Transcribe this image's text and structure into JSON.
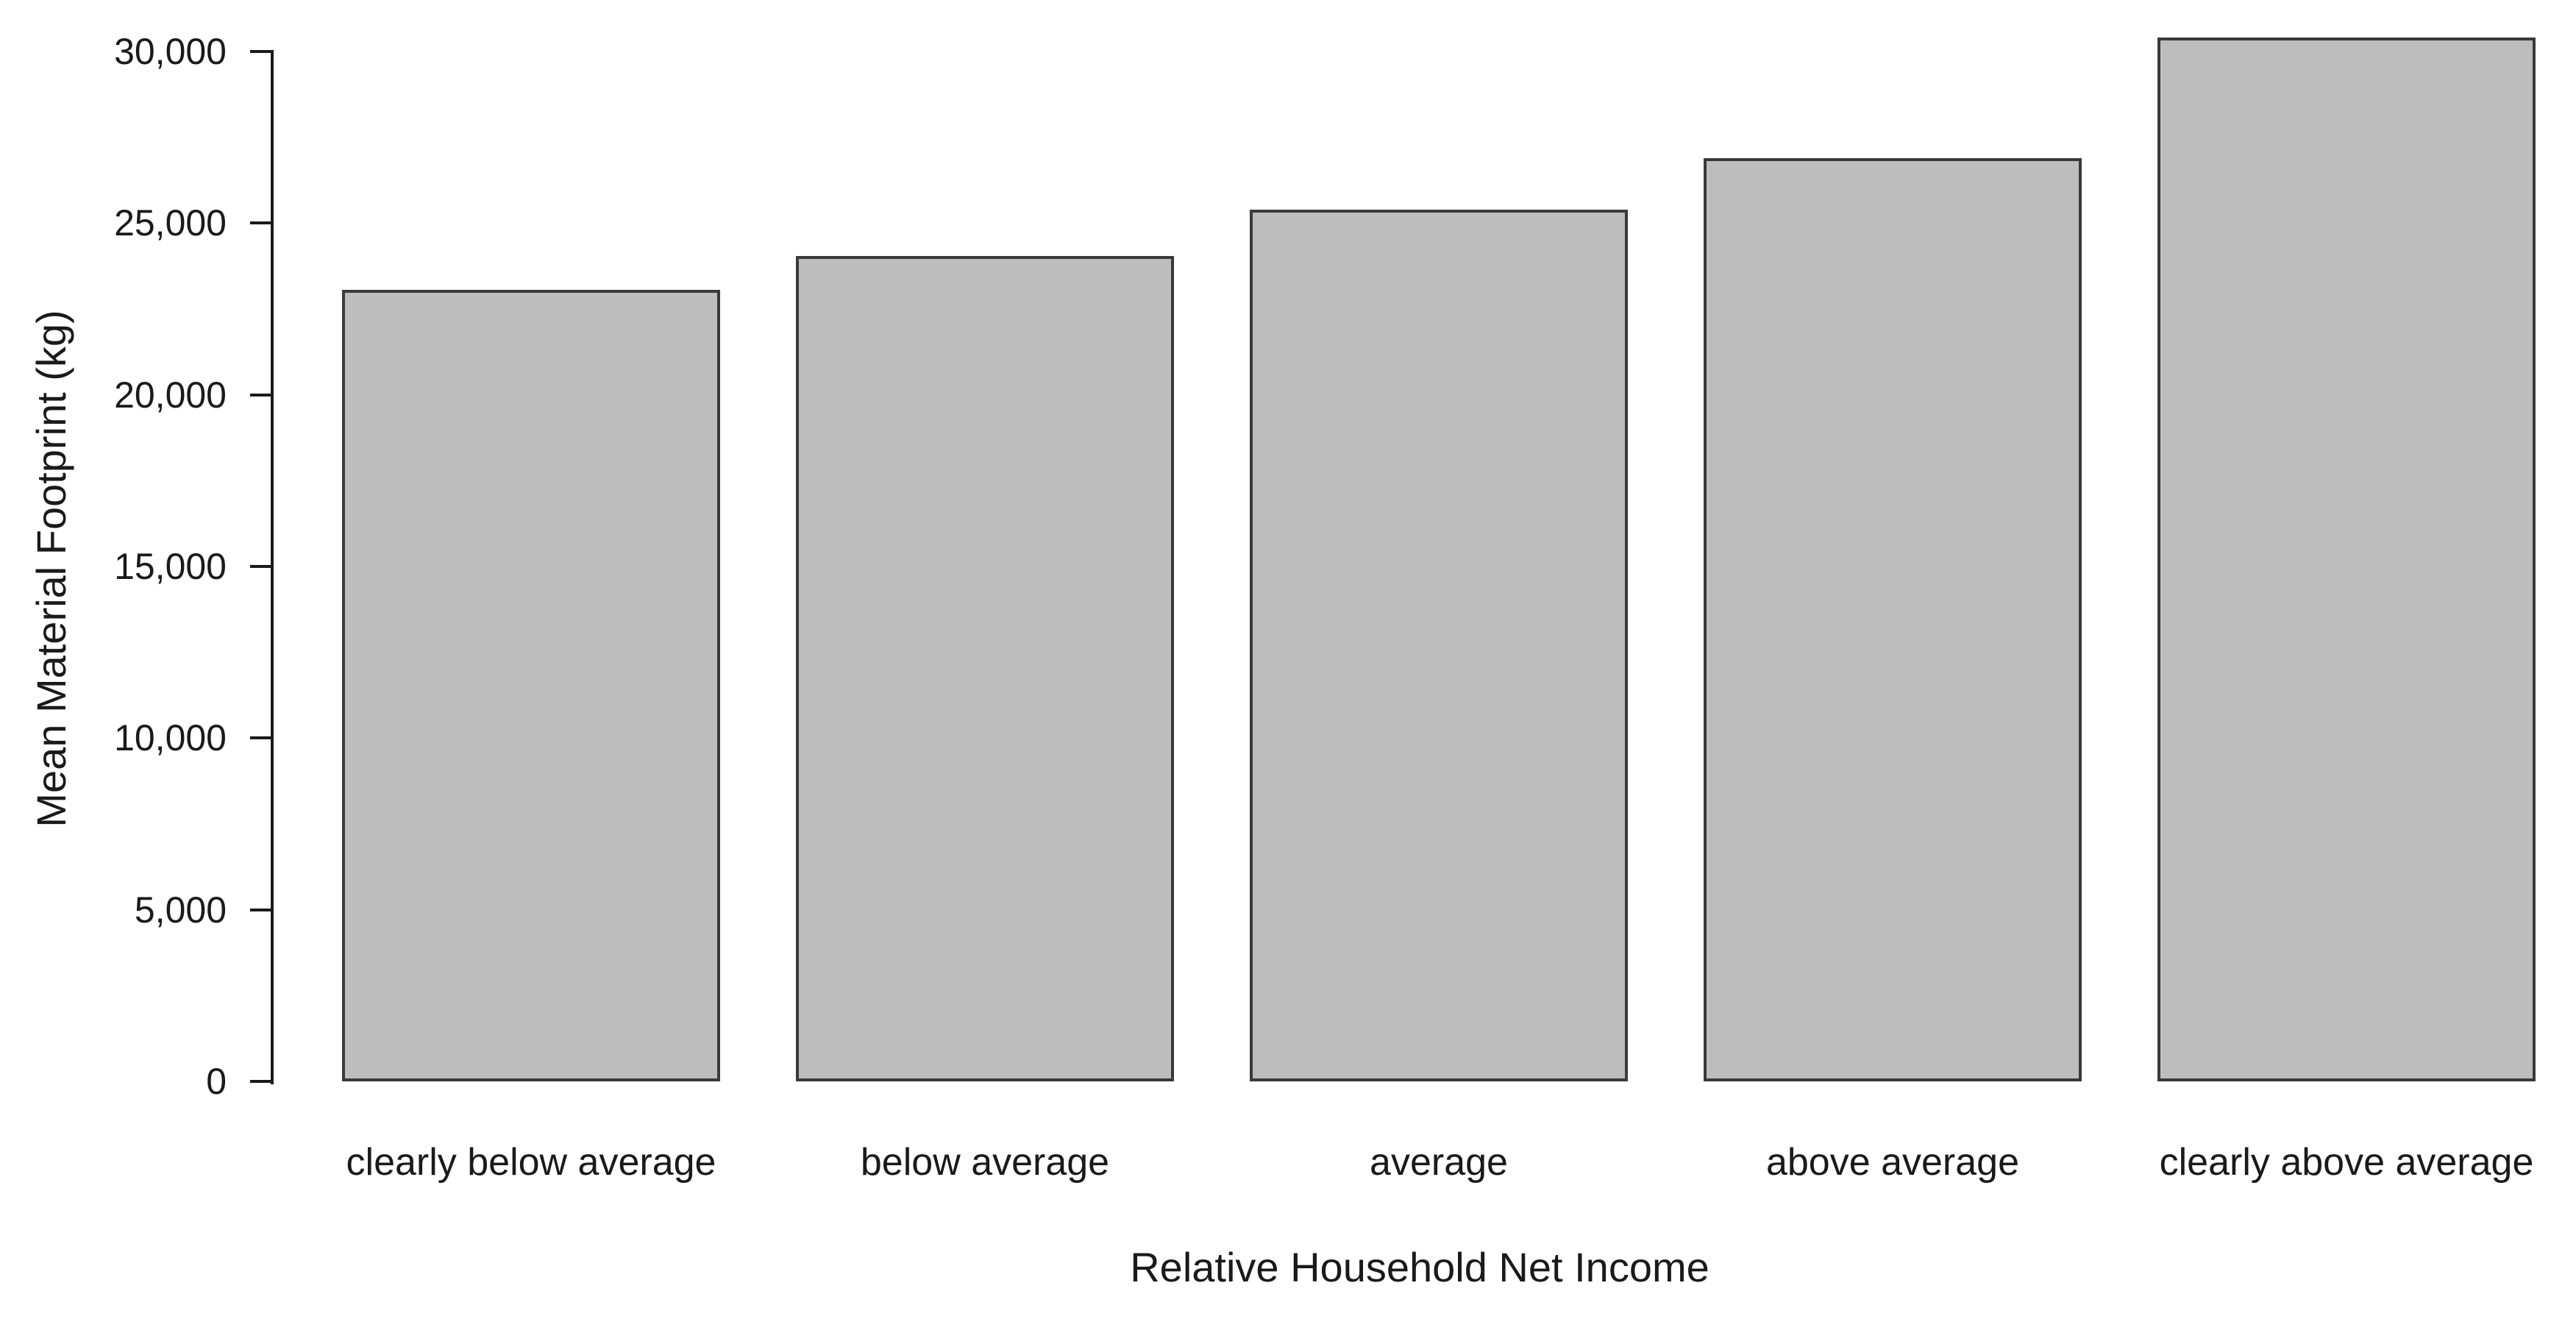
{
  "chart_data": {
    "type": "bar",
    "title": "",
    "categories": [
      "clearly below average",
      "below average",
      "average",
      "above average",
      "clearly above average"
    ],
    "values": [
      23050,
      24050,
      25400,
      26900,
      30400
    ],
    "xlabel": "Relative Household Net Income",
    "ylabel": "Mean Material Footprint (kg)",
    "ylim": [
      0,
      30000
    ],
    "ytick_interval": 5000,
    "ytick_labels": [
      "0",
      "5,000",
      "10,000",
      "15,000",
      "20,000",
      "25,000",
      "30,000"
    ],
    "grid": false,
    "legend": false,
    "bar_fill_color": "#bdbdbd",
    "bar_border_color": "#3a3a3a",
    "axis_color": "#1a1a1a",
    "text_color": "#1a1a1a",
    "background_color": "#ffffff"
  }
}
